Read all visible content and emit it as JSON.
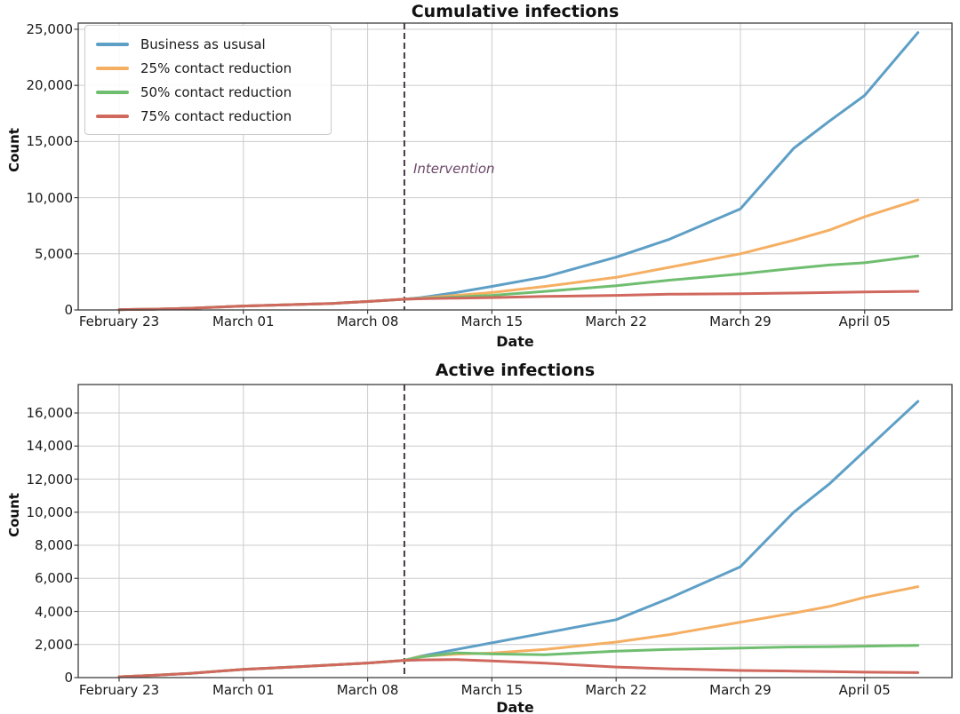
{
  "figure": {
    "background": "#ffffff",
    "grid_color": "#cccccc",
    "spine_color": "#3d3d3d",
    "intervention_line_color": "#473947",
    "intervention_text_color": "#6d4869"
  },
  "legend": {
    "entries": [
      "Business as ususal",
      "25% contact reduction",
      "50% contact reduction",
      "75% contact reduction"
    ]
  },
  "chart_data": [
    {
      "type": "line",
      "title": "Cumulative infections",
      "xlabel": "Date",
      "ylabel": "Count",
      "legend_position": "upper left",
      "grid": true,
      "x_ticks": {
        "days": [
          0,
          7,
          14,
          21,
          28,
          35,
          42
        ],
        "labels": [
          "February 23",
          "March 01",
          "March 08",
          "March 15",
          "March 22",
          "March 29",
          "April 05"
        ]
      },
      "y_ticks": {
        "values": [
          0,
          5000,
          10000,
          15000,
          20000,
          25000
        ],
        "labels": [
          "0",
          "5,000",
          "10,000",
          "15,000",
          "20,000",
          "25,000"
        ]
      },
      "xlim_days": [
        -2.3,
        46.9
      ],
      "ylim": [
        0,
        25550
      ],
      "annotation": {
        "label": "Intervention",
        "day": 16.07
      },
      "vline_day": 16.07,
      "days": [
        0,
        2,
        4,
        7,
        10,
        12,
        14,
        16,
        17,
        19,
        21,
        24,
        28,
        31,
        35,
        38,
        40,
        42,
        45
      ],
      "series": [
        {
          "name": "Business as ususal",
          "color": "#5E9FC6",
          "values": [
            30,
            70,
            150,
            350,
            480,
            580,
            750,
            950,
            1100,
            1550,
            2100,
            2950,
            4700,
            6300,
            9000,
            14400,
            16800,
            19100,
            24700
          ]
        },
        {
          "name": "25% contact reduction",
          "color": "#F5AF63",
          "values": [
            30,
            70,
            150,
            350,
            480,
            580,
            750,
            950,
            1050,
            1300,
            1550,
            2100,
            2900,
            3800,
            5000,
            6200,
            7100,
            8300,
            9800
          ]
        },
        {
          "name": "50% contact reduction",
          "color": "#6FBE70",
          "values": [
            30,
            70,
            150,
            350,
            480,
            580,
            750,
            950,
            1020,
            1150,
            1300,
            1650,
            2150,
            2650,
            3200,
            3700,
            4000,
            4200,
            4800
          ]
        },
        {
          "name": "75% contact reduction",
          "color": "#D0685E",
          "values": [
            30,
            70,
            150,
            350,
            480,
            580,
            750,
            950,
            1000,
            1050,
            1100,
            1200,
            1300,
            1400,
            1450,
            1500,
            1550,
            1600,
            1650
          ]
        }
      ]
    },
    {
      "type": "line",
      "title": "Active infections",
      "xlabel": "Date",
      "ylabel": "Count",
      "legend_position": "none",
      "grid": true,
      "x_ticks": {
        "days": [
          0,
          7,
          14,
          21,
          28,
          35,
          42
        ],
        "labels": [
          "February 23",
          "March 01",
          "March 08",
          "March 15",
          "March 22",
          "March 29",
          "April 05"
        ]
      },
      "y_ticks": {
        "values": [
          0,
          2000,
          4000,
          6000,
          8000,
          10000,
          12000,
          14000,
          16000
        ],
        "labels": [
          "0",
          "2,000",
          "4,000",
          "6,000",
          "8,000",
          "10,000",
          "12,000",
          "14,000",
          "16,000"
        ]
      },
      "xlim_days": [
        -2.3,
        46.9
      ],
      "ylim": [
        0,
        17720
      ],
      "vline_day": 16.07,
      "days": [
        0,
        2,
        4,
        7,
        10,
        12,
        14,
        16,
        17,
        19,
        21,
        24,
        28,
        31,
        35,
        38,
        40,
        42,
        45
      ],
      "series": [
        {
          "name": "Business as ususal",
          "color": "#5E9FC6",
          "values": [
            50,
            140,
            250,
            500,
            650,
            760,
            880,
            1030,
            1300,
            1700,
            2100,
            2700,
            3500,
            4800,
            6700,
            10000,
            11700,
            13700,
            16700
          ]
        },
        {
          "name": "25% contact reduction",
          "color": "#F5AF63",
          "values": [
            50,
            140,
            250,
            500,
            650,
            760,
            880,
            1030,
            1280,
            1420,
            1480,
            1700,
            2150,
            2600,
            3350,
            3900,
            4300,
            4850,
            5500
          ]
        },
        {
          "name": "50% contact reduction",
          "color": "#6FBE70",
          "values": [
            50,
            140,
            250,
            500,
            650,
            760,
            880,
            1030,
            1250,
            1500,
            1430,
            1380,
            1600,
            1700,
            1790,
            1850,
            1870,
            1900,
            1950
          ]
        },
        {
          "name": "75% contact reduction",
          "color": "#D0685E",
          "values": [
            50,
            140,
            250,
            500,
            650,
            760,
            880,
            1030,
            1070,
            1090,
            1010,
            870,
            640,
            530,
            430,
            390,
            360,
            330,
            300
          ]
        }
      ]
    }
  ]
}
